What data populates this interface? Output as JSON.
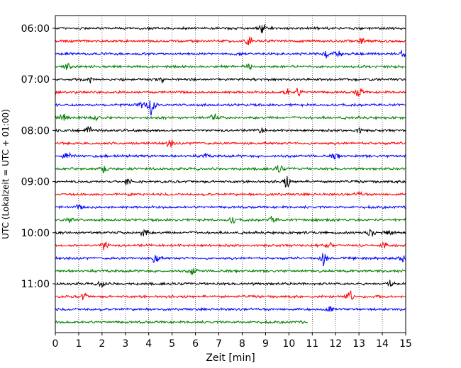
{
  "chart_data": {
    "type": "line",
    "title": "",
    "xlabel": "Zeit  [min]",
    "ylabel": "UTC (Lokalzeit = UTC + 01:00)",
    "xlim": [
      0,
      15
    ],
    "x_ticks": [
      "0",
      "1",
      "2",
      "3",
      "4",
      "5",
      "6",
      "7",
      "8",
      "9",
      "10",
      "11",
      "12",
      "13",
      "14",
      "15"
    ],
    "y_ticks": [
      "06:00",
      "07:00",
      "08:00",
      "09:00",
      "10:00",
      "11:00"
    ],
    "grid": "vertical dotted",
    "colors": [
      "#000000",
      "#ff0000",
      "#0000ff",
      "#008000"
    ],
    "start_time": "06:00",
    "trace_interval_min": 15,
    "last_trace_end_min": 10.8,
    "series": [
      {
        "start": "06:00",
        "color": "#000000",
        "events": [
          [
            8.9,
            1.0
          ]
        ]
      },
      {
        "start": "06:15",
        "color": "#ff0000",
        "events": [
          [
            8.3,
            0.6
          ],
          [
            13.1,
            0.6
          ]
        ]
      },
      {
        "start": "06:30",
        "color": "#0000ff",
        "events": [
          [
            11.6,
            0.6
          ],
          [
            12.1,
            0.7
          ],
          [
            14.9,
            0.5
          ]
        ]
      },
      {
        "start": "06:45",
        "color": "#008000",
        "events": [
          [
            0.5,
            0.5
          ],
          [
            8.3,
            0.4
          ]
        ]
      },
      {
        "start": "07:00",
        "color": "#000000",
        "events": [
          [
            1.5,
            0.5
          ],
          [
            4.5,
            0.5
          ]
        ]
      },
      {
        "start": "07:15",
        "color": "#ff0000",
        "events": [
          [
            9.9,
            0.6
          ],
          [
            10.4,
            0.6
          ],
          [
            13.0,
            0.8
          ]
        ]
      },
      {
        "start": "07:30",
        "color": "#0000ff",
        "events": [
          [
            4.1,
            1.7
          ],
          [
            3.7,
            0.5
          ]
        ]
      },
      {
        "start": "07:45",
        "color": "#008000",
        "events": [
          [
            0.3,
            0.6
          ],
          [
            1.7,
            0.5
          ],
          [
            6.8,
            0.7
          ]
        ]
      },
      {
        "start": "08:00",
        "color": "#000000",
        "events": [
          [
            1.4,
            0.7
          ],
          [
            8.8,
            0.5
          ],
          [
            13.0,
            0.5
          ]
        ]
      },
      {
        "start": "08:15",
        "color": "#ff0000",
        "events": [
          [
            4.9,
            0.6
          ]
        ]
      },
      {
        "start": "08:30",
        "color": "#0000ff",
        "events": [
          [
            0.5,
            0.8
          ],
          [
            6.4,
            0.4
          ],
          [
            12.0,
            0.5
          ]
        ]
      },
      {
        "start": "08:45",
        "color": "#008000",
        "events": [
          [
            2.1,
            0.6
          ],
          [
            9.6,
            0.6
          ]
        ]
      },
      {
        "start": "09:00",
        "color": "#000000",
        "events": [
          [
            3.1,
            0.8
          ],
          [
            9.9,
            1.0
          ]
        ]
      },
      {
        "start": "09:15",
        "color": "#ff0000",
        "events": [
          [
            13.0,
            0.4
          ]
        ]
      },
      {
        "start": "09:30",
        "color": "#0000ff",
        "events": [
          [
            1.0,
            0.3
          ]
        ]
      },
      {
        "start": "09:45",
        "color": "#008000",
        "events": [
          [
            0.6,
            0.5
          ],
          [
            7.6,
            0.5
          ],
          [
            9.3,
            0.5
          ]
        ]
      },
      {
        "start": "10:00",
        "color": "#000000",
        "events": [
          [
            3.8,
            0.8
          ],
          [
            13.5,
            0.6
          ],
          [
            14.3,
            0.5
          ]
        ]
      },
      {
        "start": "10:15",
        "color": "#ff0000",
        "events": [
          [
            2.1,
            0.8
          ],
          [
            11.7,
            0.6
          ],
          [
            14.1,
            0.5
          ]
        ]
      },
      {
        "start": "10:30",
        "color": "#0000ff",
        "events": [
          [
            4.3,
            1.1
          ],
          [
            11.5,
            1.0
          ],
          [
            14.9,
            0.6
          ]
        ]
      },
      {
        "start": "10:45",
        "color": "#008000",
        "events": [
          [
            5.9,
            0.6
          ]
        ]
      },
      {
        "start": "11:00",
        "color": "#000000",
        "events": [
          [
            2.0,
            0.7
          ],
          [
            14.4,
            0.5
          ]
        ]
      },
      {
        "start": "11:15",
        "color": "#ff0000",
        "events": [
          [
            1.2,
            0.6
          ],
          [
            12.6,
            1.2
          ]
        ]
      },
      {
        "start": "11:30",
        "color": "#0000ff",
        "events": [
          [
            11.8,
            0.4
          ]
        ]
      },
      {
        "start": "11:45",
        "color": "#008000",
        "events": []
      }
    ]
  }
}
